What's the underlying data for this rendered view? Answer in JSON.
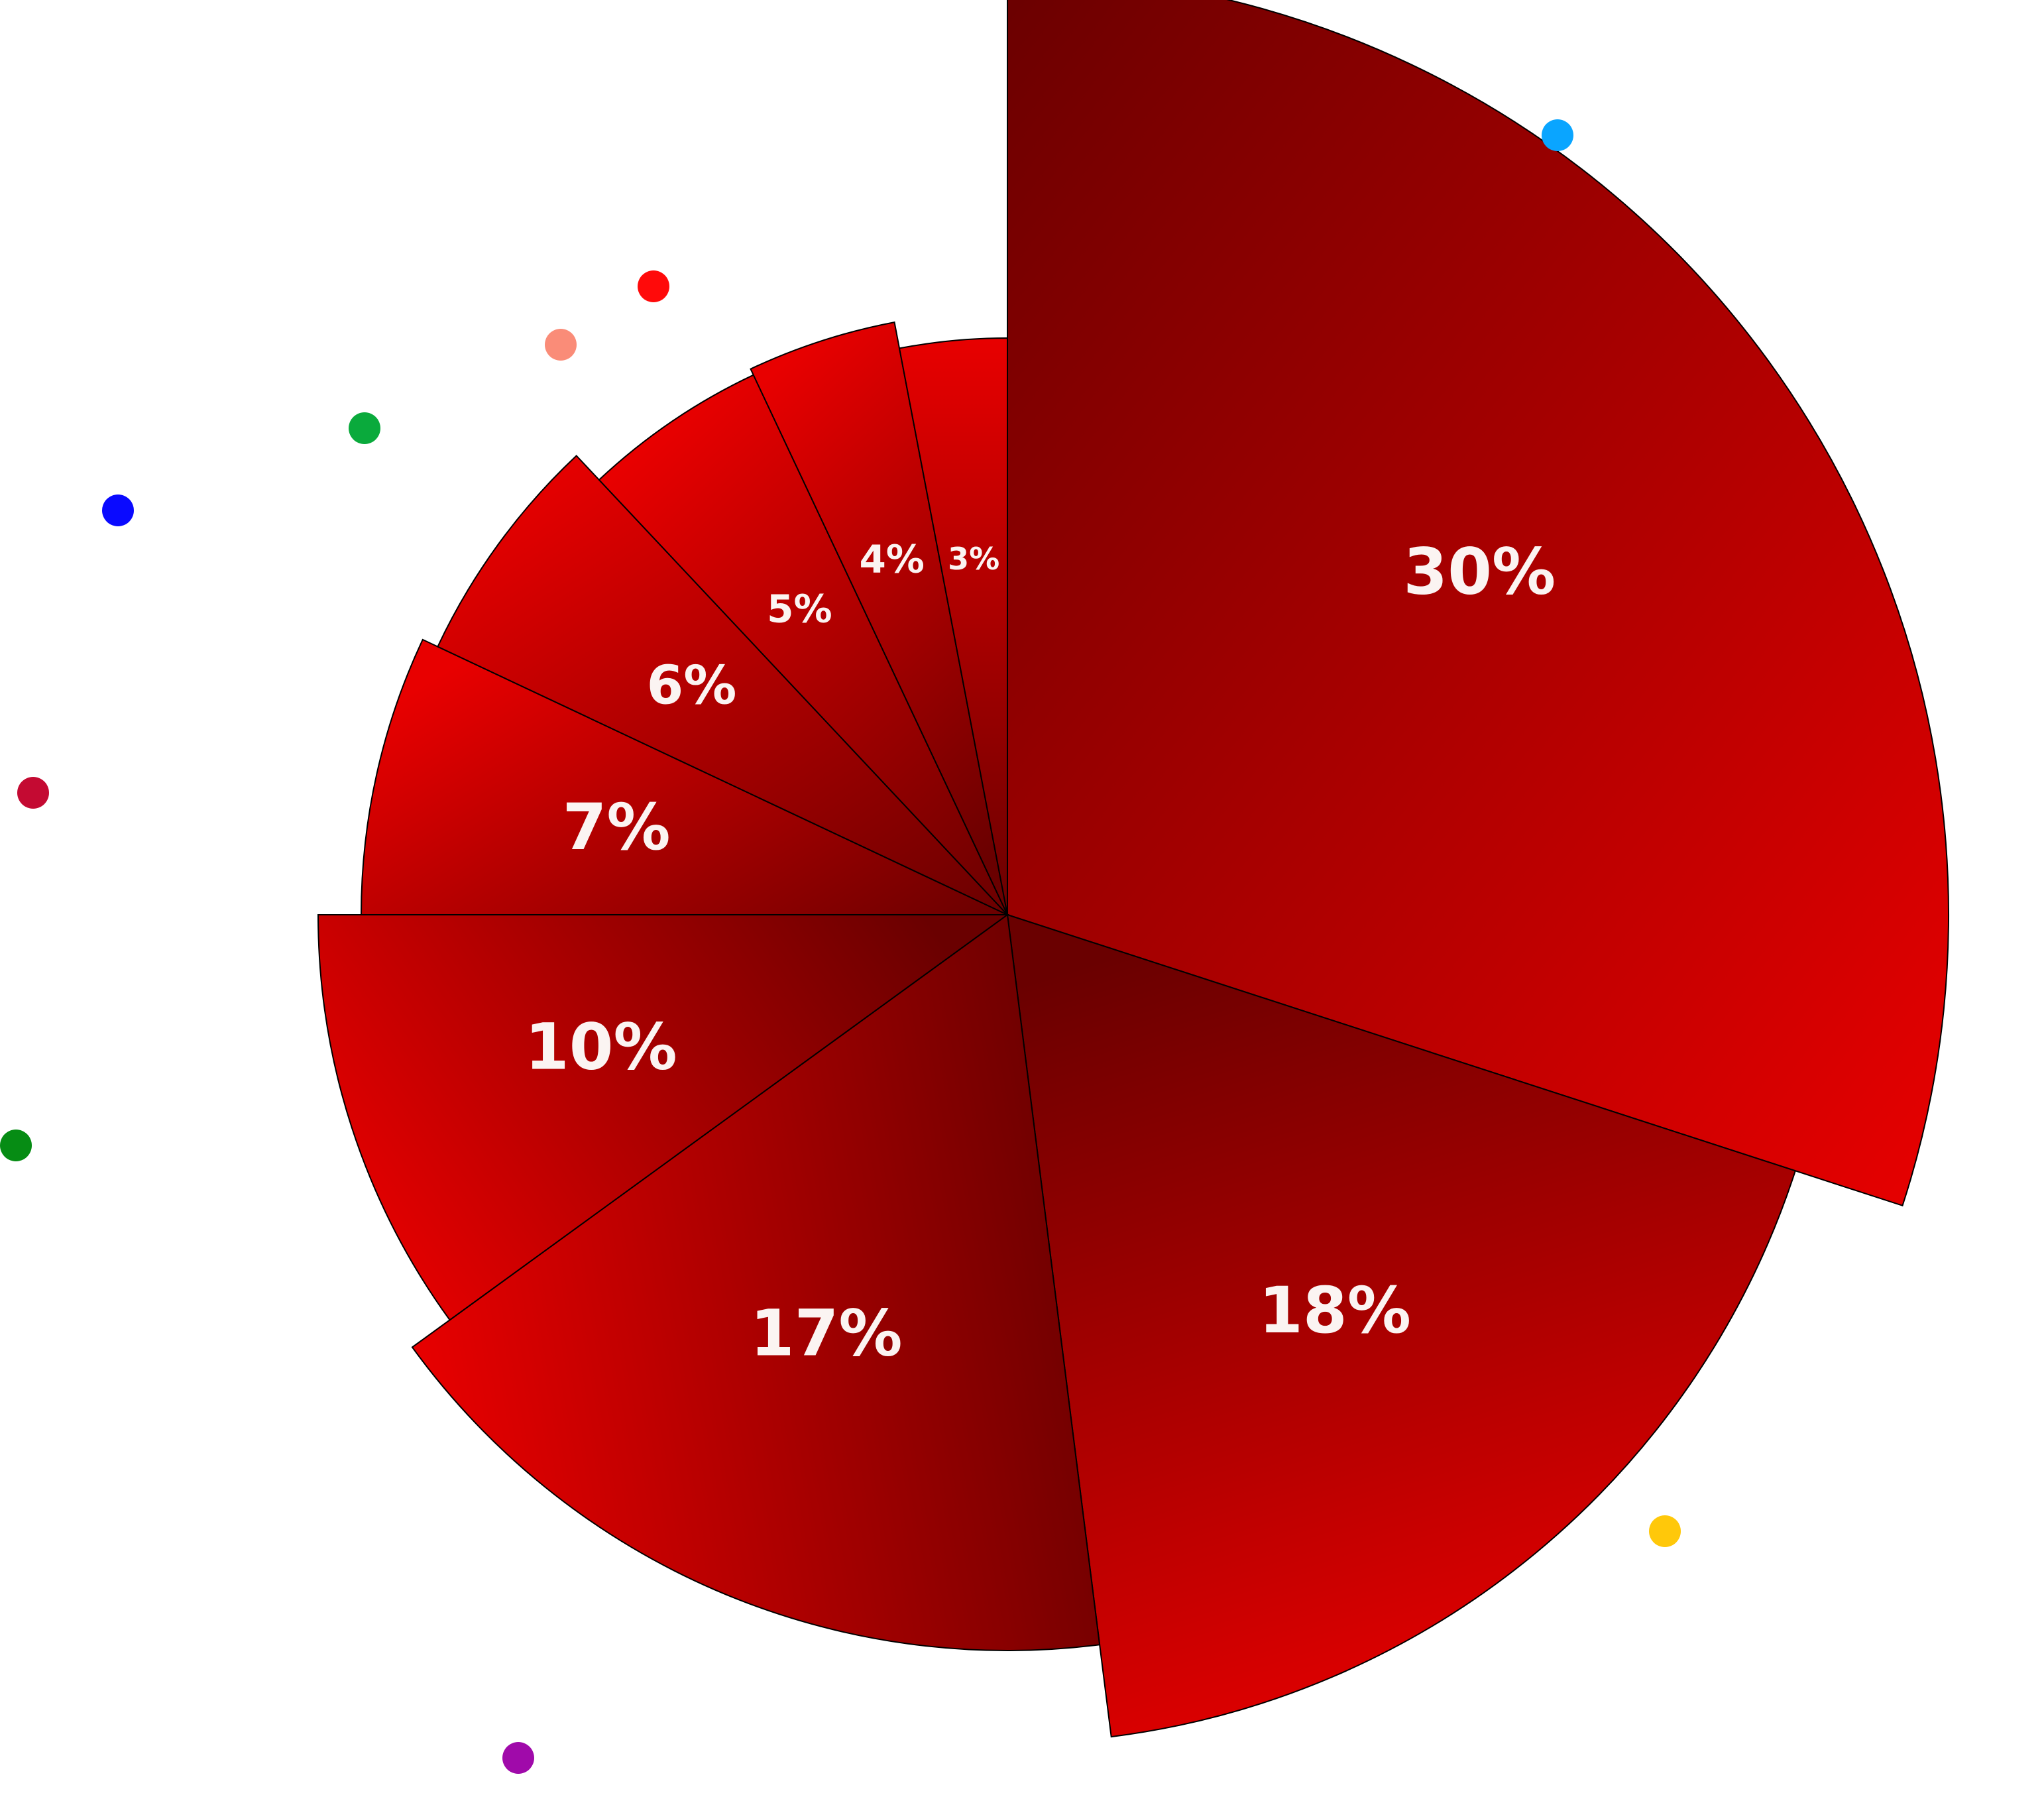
{
  "chart_data": {
    "type": "pie",
    "title": "",
    "slices": [
      {
        "label": "30%",
        "value": 30,
        "dot_color": "#0aa5ff"
      },
      {
        "label": "18%",
        "value": 18,
        "dot_color": "#ffc80a"
      },
      {
        "label": "17%",
        "value": 17,
        "dot_color": "#a00aaa"
      },
      {
        "label": "10%",
        "value": 10,
        "dot_color": "#068c14"
      },
      {
        "label": "7%",
        "value": 7,
        "dot_color": "#c40a32"
      },
      {
        "label": "6%",
        "value": 6,
        "dot_color": "#0a0aff"
      },
      {
        "label": "5%",
        "value": 5,
        "dot_color": "#0aaa3c"
      },
      {
        "label": "4%",
        "value": 4,
        "dot_color": "#fa8c78"
      },
      {
        "label": "3%",
        "value": 3,
        "dot_color": "#ff0a0a"
      }
    ],
    "colors": {
      "dark": "#6a0000",
      "light": "#e80000",
      "stroke": "#000000"
    },
    "legend": "none",
    "grid": false
  }
}
